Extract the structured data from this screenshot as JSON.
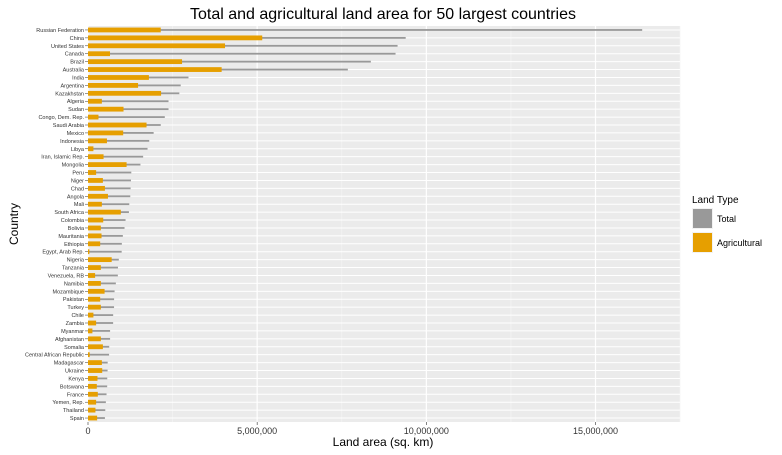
{
  "chart_data": {
    "type": "bar",
    "orientation": "horizontal",
    "title": "Total and agricultural land area for 50 largest countries",
    "xlabel": "Land area (sq. km)",
    "ylabel": "Country",
    "xlim": [
      0,
      17500000
    ],
    "xticks": [
      0,
      5000000,
      10000000,
      15000000
    ],
    "xtick_labels": [
      "0",
      "5,000,000",
      "10,000,000",
      "15,000,000"
    ],
    "grid": true,
    "legend": {
      "title": "Land Type",
      "position": "right"
    },
    "series": [
      {
        "name": "Total",
        "color": "#999999"
      },
      {
        "name": "Agricultural",
        "color": "#E69F00"
      }
    ],
    "categories": [
      "Russian Federation",
      "China",
      "United States",
      "Canada",
      "Brazil",
      "Australia",
      "India",
      "Argentina",
      "Kazakhstan",
      "Algeria",
      "Sudan",
      "Congo, Dem. Rep.",
      "Saudi Arabia",
      "Mexico",
      "Indonesia",
      "Libya",
      "Iran, Islamic Rep.",
      "Mongolia",
      "Peru",
      "Niger",
      "Chad",
      "Angola",
      "Mali",
      "South Africa",
      "Colombia",
      "Bolivia",
      "Mauritania",
      "Ethiopia",
      "Egypt, Arab Rep.",
      "Nigeria",
      "Tanzania",
      "Venezuela, RB",
      "Namibia",
      "Mozambique",
      "Pakistan",
      "Turkey",
      "Chile",
      "Zambia",
      "Myanmar",
      "Afghanistan",
      "Somalia",
      "Central African Republic",
      "Madagascar",
      "Ukraine",
      "Kenya",
      "Botswana",
      "France",
      "Yemen, Rep.",
      "Thailand",
      "Spain"
    ],
    "total": [
      16380000,
      9390000,
      9150000,
      9090000,
      8360000,
      7680000,
      2970000,
      2740000,
      2700000,
      2380000,
      2380000,
      2270000,
      2150000,
      1940000,
      1810000,
      1760000,
      1630000,
      1550000,
      1280000,
      1270000,
      1260000,
      1250000,
      1220000,
      1210000,
      1110000,
      1080000,
      1030000,
      1000000,
      995000,
      911000,
      886000,
      882000,
      823000,
      786000,
      771000,
      770000,
      744000,
      743000,
      653000,
      653000,
      627000,
      623000,
      582000,
      579000,
      569000,
      567000,
      548000,
      528000,
      511000,
      500000
    ],
    "agricultural": [
      2150000,
      5150000,
      4050000,
      650000,
      2780000,
      3950000,
      1800000,
      1480000,
      2160000,
      410000,
      1050000,
      310000,
      1730000,
      1040000,
      560000,
      160000,
      460000,
      1140000,
      240000,
      440000,
      500000,
      590000,
      410000,
      970000,
      450000,
      380000,
      400000,
      360000,
      40000,
      700000,
      380000,
      210000,
      380000,
      490000,
      360000,
      380000,
      160000,
      240000,
      130000,
      380000,
      440000,
      50000,
      410000,
      420000,
      280000,
      260000,
      290000,
      240000,
      220000,
      270000
    ]
  }
}
